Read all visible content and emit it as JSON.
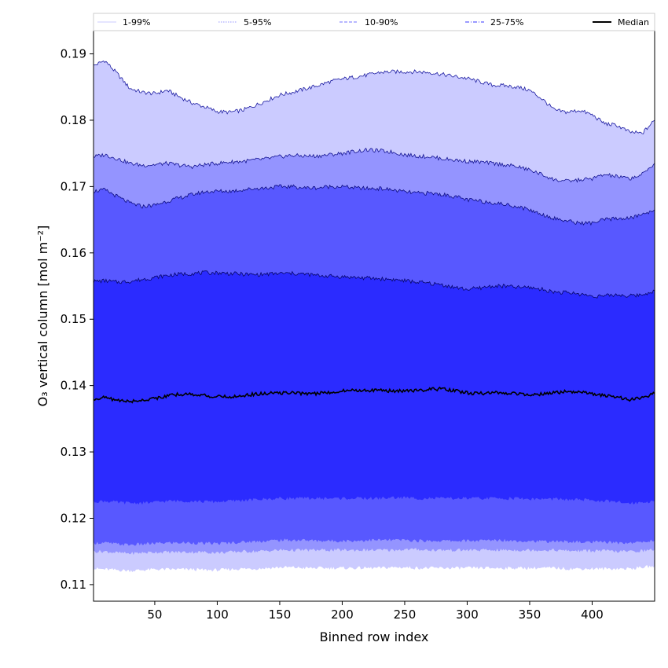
{
  "chart_data": {
    "type": "area",
    "xlabel": "Binned row index",
    "ylabel": "O₃ vertical column [mol m⁻²]",
    "xlim": [
      1,
      450
    ],
    "ylim": [
      0.1075,
      0.1935
    ],
    "x_ticks": [
      50,
      100,
      150,
      200,
      250,
      300,
      350,
      400
    ],
    "y_ticks": [
      0.11,
      0.12,
      0.13,
      0.14,
      0.15,
      0.16,
      0.17,
      0.18,
      0.19
    ],
    "x_tick_labels": [
      "50",
      "100",
      "150",
      "200",
      "250",
      "300",
      "350",
      "400"
    ],
    "y_tick_labels": [
      "0.11",
      "0.12",
      "0.13",
      "0.14",
      "0.15",
      "0.16",
      "0.17",
      "0.18",
      "0.19"
    ],
    "grid": false,
    "legend_position": "top",
    "x": [
      1,
      10,
      20,
      30,
      40,
      50,
      60,
      70,
      80,
      90,
      100,
      110,
      120,
      130,
      140,
      150,
      160,
      170,
      180,
      190,
      200,
      210,
      220,
      230,
      240,
      250,
      260,
      270,
      280,
      290,
      300,
      310,
      320,
      330,
      340,
      350,
      360,
      370,
      380,
      390,
      400,
      410,
      420,
      430,
      440,
      450
    ],
    "bands": [
      {
        "name": "1-99%",
        "color": "#cbcbff",
        "edge_color": "#1a1aa0",
        "lower": [
          0.1124,
          0.1123,
          0.1122,
          0.1121,
          0.1122,
          0.1123,
          0.1123,
          0.1123,
          0.1123,
          0.1122,
          0.1122,
          0.1123,
          0.1124,
          0.1124,
          0.1125,
          0.1126,
          0.1126,
          0.1125,
          0.1125,
          0.1125,
          0.1125,
          0.1125,
          0.1125,
          0.1125,
          0.1126,
          0.1126,
          0.1125,
          0.1125,
          0.1125,
          0.1125,
          0.1125,
          0.1125,
          0.1125,
          0.1125,
          0.1125,
          0.1125,
          0.1125,
          0.1125,
          0.1124,
          0.1124,
          0.1124,
          0.1124,
          0.1124,
          0.1124,
          0.1126,
          0.1128
        ],
        "upper": [
          0.1882,
          0.189,
          0.187,
          0.1848,
          0.1842,
          0.184,
          0.1845,
          0.1835,
          0.1826,
          0.182,
          0.1813,
          0.1812,
          0.1815,
          0.1822,
          0.183,
          0.1838,
          0.1842,
          0.1847,
          0.1852,
          0.1858,
          0.1862,
          0.1865,
          0.1868,
          0.1872,
          0.1873,
          0.1873,
          0.1873,
          0.1872,
          0.1869,
          0.1866,
          0.1863,
          0.1858,
          0.1853,
          0.1852,
          0.185,
          0.1845,
          0.1832,
          0.1815,
          0.1812,
          0.1815,
          0.1808,
          0.1795,
          0.1792,
          0.1782,
          0.178,
          0.18
        ]
      },
      {
        "name": "5-95%",
        "color": "#9494ff",
        "edge_color": "#121290",
        "lower": [
          0.115,
          0.115,
          0.1148,
          0.1147,
          0.1148,
          0.1149,
          0.1149,
          0.1149,
          0.1149,
          0.1149,
          0.1148,
          0.1149,
          0.115,
          0.115,
          0.1151,
          0.1152,
          0.1152,
          0.1152,
          0.1152,
          0.1152,
          0.1152,
          0.1152,
          0.1152,
          0.1152,
          0.1152,
          0.1153,
          0.1153,
          0.1152,
          0.1152,
          0.1152,
          0.1152,
          0.1152,
          0.1152,
          0.1152,
          0.1152,
          0.1152,
          0.1152,
          0.1152,
          0.1151,
          0.1151,
          0.1151,
          0.1151,
          0.115,
          0.115,
          0.1151,
          0.1153
        ],
        "upper": [
          0.1745,
          0.1748,
          0.1742,
          0.1735,
          0.1732,
          0.1733,
          0.1735,
          0.1732,
          0.173,
          0.1733,
          0.1735,
          0.1737,
          0.1738,
          0.174,
          0.1742,
          0.1745,
          0.1747,
          0.1746,
          0.1746,
          0.1748,
          0.175,
          0.1753,
          0.1755,
          0.1754,
          0.1752,
          0.1748,
          0.1746,
          0.1745,
          0.1742,
          0.174,
          0.1738,
          0.1737,
          0.1735,
          0.1733,
          0.173,
          0.1725,
          0.1718,
          0.171,
          0.1708,
          0.171,
          0.1712,
          0.1718,
          0.1715,
          0.1712,
          0.1718,
          0.1735
        ]
      },
      {
        "name": "10-90%",
        "color": "#5858ff",
        "edge_color": "#0c0c80",
        "lower": [
          0.1163,
          0.1163,
          0.1161,
          0.116,
          0.1161,
          0.1162,
          0.1163,
          0.1163,
          0.1163,
          0.1162,
          0.1162,
          0.1163,
          0.1164,
          0.1165,
          0.1166,
          0.1167,
          0.1167,
          0.1167,
          0.1166,
          0.1166,
          0.1166,
          0.1166,
          0.1167,
          0.1167,
          0.1167,
          0.1167,
          0.1166,
          0.1166,
          0.1166,
          0.1166,
          0.1166,
          0.1166,
          0.1167,
          0.1167,
          0.1166,
          0.1166,
          0.1165,
          0.1165,
          0.1165,
          0.1164,
          0.1164,
          0.1164,
          0.1163,
          0.1163,
          0.1164,
          0.1167
        ],
        "upper": [
          0.1693,
          0.1695,
          0.1685,
          0.1675,
          0.167,
          0.1672,
          0.1678,
          0.1683,
          0.1688,
          0.1692,
          0.1693,
          0.1693,
          0.1695,
          0.1697,
          0.1698,
          0.17,
          0.17,
          0.1698,
          0.1698,
          0.17,
          0.17,
          0.1698,
          0.1697,
          0.1697,
          0.1695,
          0.1692,
          0.169,
          0.169,
          0.1688,
          0.1685,
          0.168,
          0.1678,
          0.1676,
          0.1673,
          0.167,
          0.1665,
          0.1658,
          0.1652,
          0.1648,
          0.1645,
          0.1645,
          0.165,
          0.1652,
          0.1652,
          0.1658,
          0.1665
        ]
      },
      {
        "name": "25-75%",
        "color": "#2b2bff",
        "edge_color": "#06066a",
        "lower": [
          0.1225,
          0.1226,
          0.1224,
          0.1223,
          0.1223,
          0.1224,
          0.1226,
          0.1226,
          0.1226,
          0.1225,
          0.1225,
          0.1226,
          0.1227,
          0.1228,
          0.1229,
          0.123,
          0.123,
          0.123,
          0.123,
          0.123,
          0.123,
          0.123,
          0.123,
          0.123,
          0.1231,
          0.1231,
          0.123,
          0.123,
          0.123,
          0.123,
          0.123,
          0.123,
          0.123,
          0.123,
          0.123,
          0.1229,
          0.1229,
          0.1229,
          0.1228,
          0.1228,
          0.1227,
          0.1226,
          0.1224,
          0.1223,
          0.1224,
          0.1226
        ],
        "upper": [
          0.1557,
          0.1558,
          0.1556,
          0.1557,
          0.156,
          0.1563,
          0.1566,
          0.1568,
          0.1569,
          0.157,
          0.157,
          0.1569,
          0.1568,
          0.1567,
          0.1568,
          0.1569,
          0.1569,
          0.1568,
          0.1566,
          0.1565,
          0.1564,
          0.1563,
          0.1562,
          0.1561,
          0.156,
          0.1558,
          0.1556,
          0.1554,
          0.1552,
          0.1548,
          0.1545,
          0.1547,
          0.155,
          0.155,
          0.1548,
          0.1548,
          0.1545,
          0.1541,
          0.154,
          0.1538,
          0.1535,
          0.1535,
          0.1537,
          0.1535,
          0.1537,
          0.1543
        ]
      }
    ],
    "median": {
      "name": "Median",
      "color": "#000000",
      "values": [
        0.138,
        0.1382,
        0.1378,
        0.1376,
        0.1378,
        0.1381,
        0.1384,
        0.1387,
        0.1387,
        0.1385,
        0.1383,
        0.1383,
        0.1385,
        0.1387,
        0.1388,
        0.1389,
        0.1389,
        0.1388,
        0.1388,
        0.139,
        0.1392,
        0.1393,
        0.1393,
        0.1393,
        0.1392,
        0.1392,
        0.1393,
        0.1394,
        0.1395,
        0.1392,
        0.1389,
        0.1388,
        0.1389,
        0.1389,
        0.1388,
        0.1387,
        0.1387,
        0.1389,
        0.1391,
        0.139,
        0.1387,
        0.1385,
        0.1383,
        0.1378,
        0.1382,
        0.1388
      ]
    },
    "legend": [
      {
        "label": "1-99%",
        "color": "#cbcbff",
        "style": "solid"
      },
      {
        "label": "5-95%",
        "color": "#9494ff",
        "style": "dotted"
      },
      {
        "label": "10-90%",
        "color": "#7070ff",
        "style": "dashed"
      },
      {
        "label": "25-75%",
        "color": "#3535ff",
        "style": "dashdot"
      },
      {
        "label": "Median",
        "color": "#000000",
        "style": "solid"
      }
    ]
  }
}
